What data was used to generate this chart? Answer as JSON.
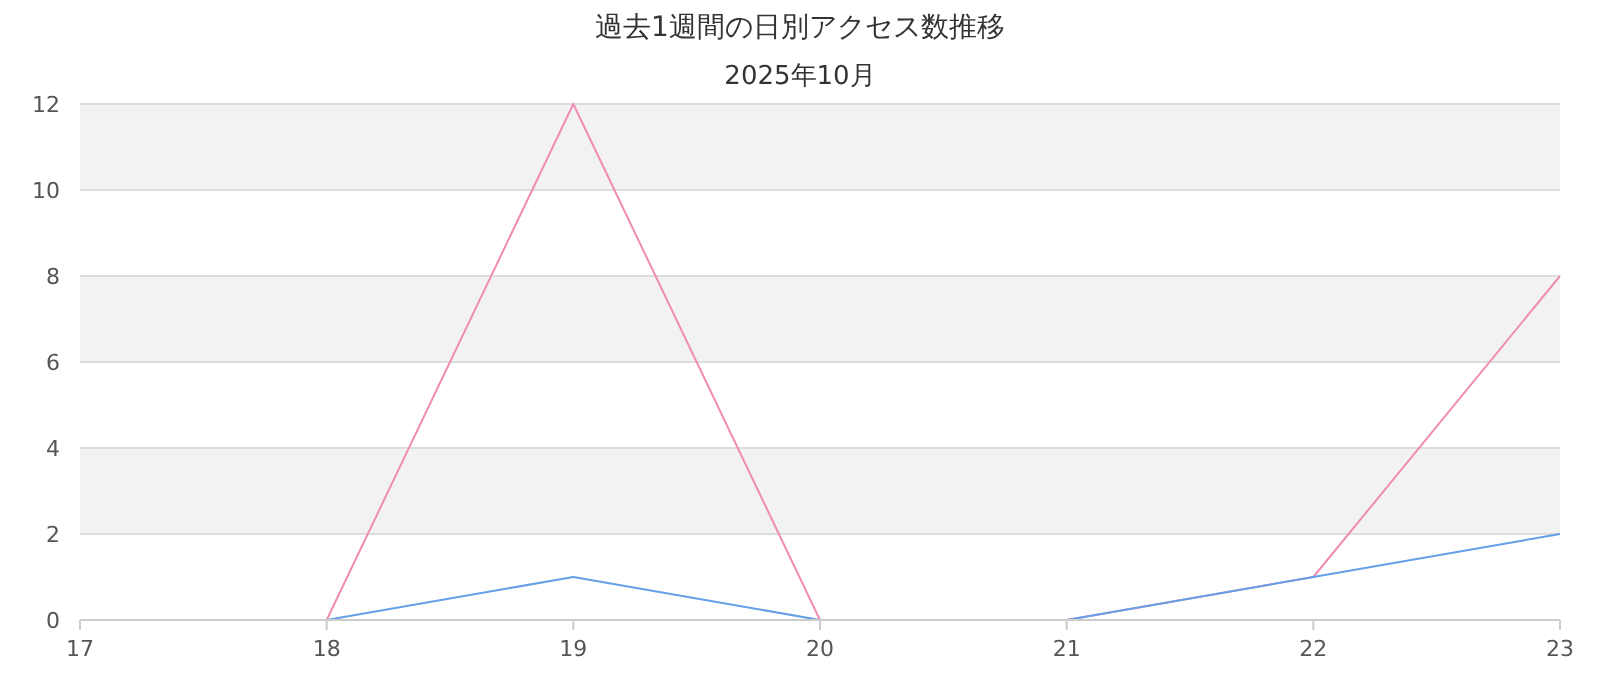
{
  "chart_data": {
    "type": "line",
    "title": "過去1週間の日別アクセス数推移",
    "subtitle": "2025年10月",
    "x": [
      18,
      19,
      20,
      21,
      22,
      23
    ],
    "xlim": [
      17,
      23
    ],
    "xticks": [
      17,
      18,
      19,
      20,
      21,
      22,
      23
    ],
    "ylim": [
      0,
      12
    ],
    "yticks": [
      0,
      2,
      4,
      6,
      8,
      10,
      12
    ],
    "grid": "y",
    "marker": "none",
    "line_style": "solid",
    "bands": [
      {
        "axis": "y",
        "from": 2,
        "to": 4,
        "color": "#f2f2f2"
      },
      {
        "axis": "y",
        "from": 6,
        "to": 8,
        "color": "#f2f2f2"
      },
      {
        "axis": "y",
        "from": 10,
        "to": 12,
        "color": "#f2f2f2"
      }
    ],
    "series": [
      {
        "color": "#f08cb4",
        "values": [
          0,
          12,
          0,
          0,
          1,
          8
        ]
      },
      {
        "color": "#64a0e6",
        "values": [
          0,
          1,
          0,
          0,
          1,
          2
        ]
      }
    ]
  }
}
